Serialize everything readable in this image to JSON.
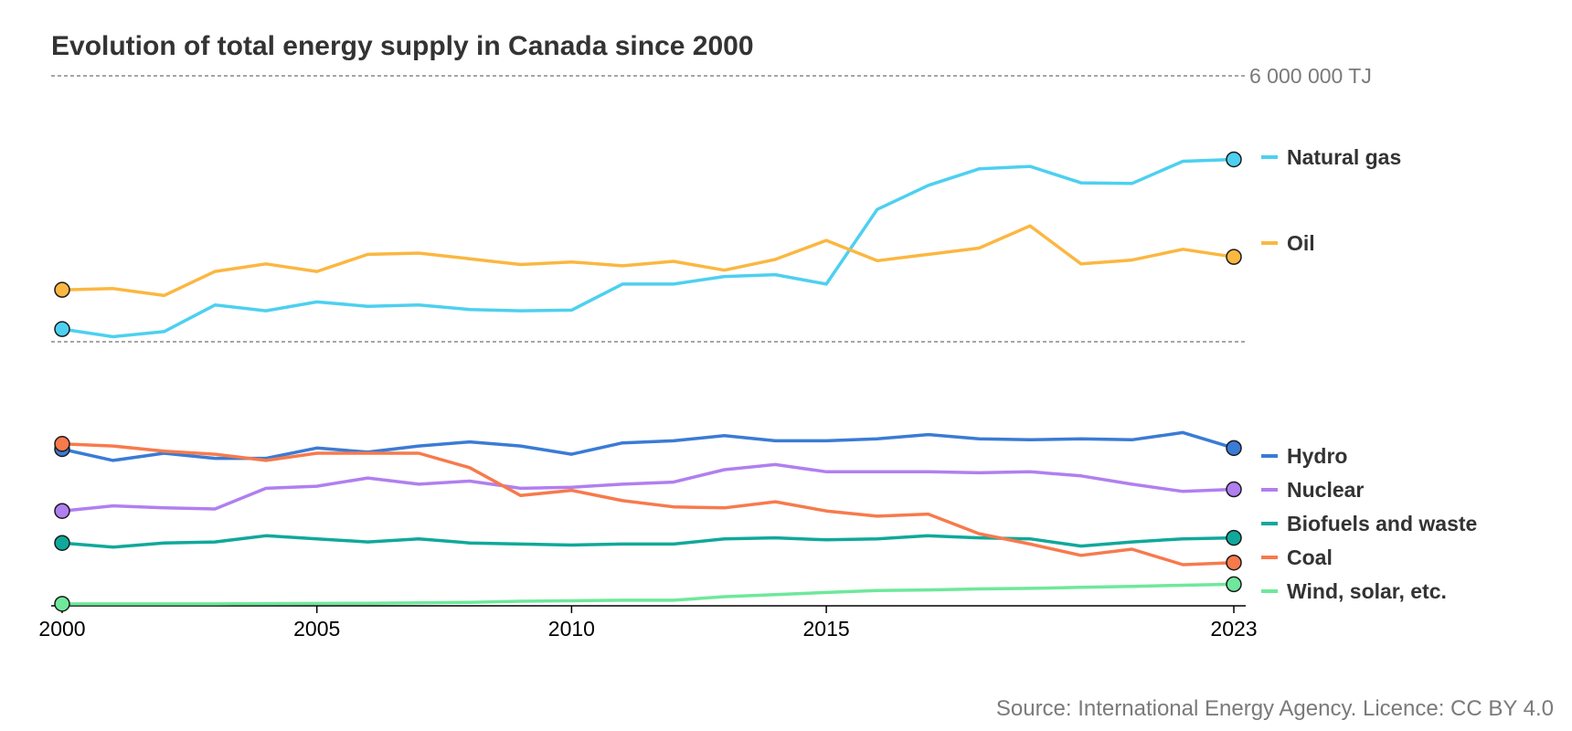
{
  "chart_data": {
    "type": "line",
    "title": "Evolution of total energy supply in Canada since 2000",
    "source": "Source: International Energy Agency. Licence: CC BY 4.0",
    "reference_label": "6 000 000 TJ",
    "x_tick_labels": [
      "2000",
      "2005",
      "2010",
      "2015",
      "2023"
    ],
    "x_ticks": [
      2000,
      2005,
      2010,
      2015,
      2023
    ],
    "x": [
      2000,
      2001,
      2002,
      2003,
      2004,
      2005,
      2006,
      2007,
      2008,
      2009,
      2010,
      2011,
      2012,
      2013,
      2014,
      2015,
      2016,
      2017,
      2018,
      2019,
      2020,
      2021,
      2022,
      2023
    ],
    "grid": false,
    "legend_placement": "right",
    "panels": [
      {
        "ylim": [
          1800000,
          6000000
        ],
        "series": [
          {
            "name": "Natural gas",
            "color": "#4dd0f0",
            "values": [
              2000000,
              1880000,
              1960000,
              2380000,
              2290000,
              2430000,
              2360000,
              2380000,
              2310000,
              2290000,
              2300000,
              2710000,
              2710000,
              2830000,
              2860000,
              2710000,
              3890000,
              4270000,
              4530000,
              4570000,
              4310000,
              4300000,
              4650000,
              4680000
            ]
          },
          {
            "name": "Oil",
            "color": "#fbb741",
            "values": [
              2620000,
              2640000,
              2530000,
              2910000,
              3030000,
              2910000,
              3180000,
              3200000,
              3110000,
              3020000,
              3060000,
              3000000,
              3070000,
              2930000,
              3100000,
              3400000,
              3080000,
              3180000,
              3280000,
              3630000,
              3030000,
              3090000,
              3260000,
              3140000
            ]
          }
        ]
      },
      {
        "ylim": [
          0,
          1700000
        ],
        "series": [
          {
            "name": "Hydro",
            "color": "#3a7bd5",
            "values": [
              1510000,
              1400000,
              1470000,
              1420000,
              1420000,
              1520000,
              1480000,
              1540000,
              1580000,
              1540000,
              1460000,
              1570000,
              1590000,
              1640000,
              1590000,
              1590000,
              1610000,
              1650000,
              1610000,
              1600000,
              1610000,
              1600000,
              1670000,
              1520000
            ]
          },
          {
            "name": "Nuclear",
            "color": "#b07ff0",
            "values": [
              910000,
              960000,
              940000,
              930000,
              1130000,
              1150000,
              1230000,
              1170000,
              1200000,
              1130000,
              1140000,
              1170000,
              1190000,
              1310000,
              1360000,
              1290000,
              1290000,
              1290000,
              1280000,
              1290000,
              1250000,
              1170000,
              1100000,
              1120000
            ]
          },
          {
            "name": "Biofuels and waste",
            "color": "#10a89b",
            "values": [
              600000,
              560000,
              600000,
              610000,
              670000,
              640000,
              610000,
              640000,
              600000,
              590000,
              580000,
              590000,
              590000,
              640000,
              650000,
              630000,
              640000,
              670000,
              650000,
              640000,
              570000,
              610000,
              640000,
              650000
            ]
          },
          {
            "name": "Coal",
            "color": "#f77a4c",
            "values": [
              1560000,
              1540000,
              1490000,
              1460000,
              1400000,
              1470000,
              1470000,
              1470000,
              1330000,
              1060000,
              1110000,
              1010000,
              950000,
              940000,
              1000000,
              910000,
              860000,
              880000,
              690000,
              590000,
              480000,
              540000,
              390000,
              410000
            ]
          },
          {
            "name": "Wind, solar, etc.",
            "color": "#6ee89b",
            "values": [
              10000,
              10000,
              10000,
              10000,
              12000,
              14000,
              16000,
              20000,
              25000,
              35000,
              40000,
              45000,
              45000,
              80000,
              100000,
              120000,
              140000,
              145000,
              155000,
              160000,
              170000,
              180000,
              190000,
              200000
            ]
          }
        ]
      }
    ]
  }
}
